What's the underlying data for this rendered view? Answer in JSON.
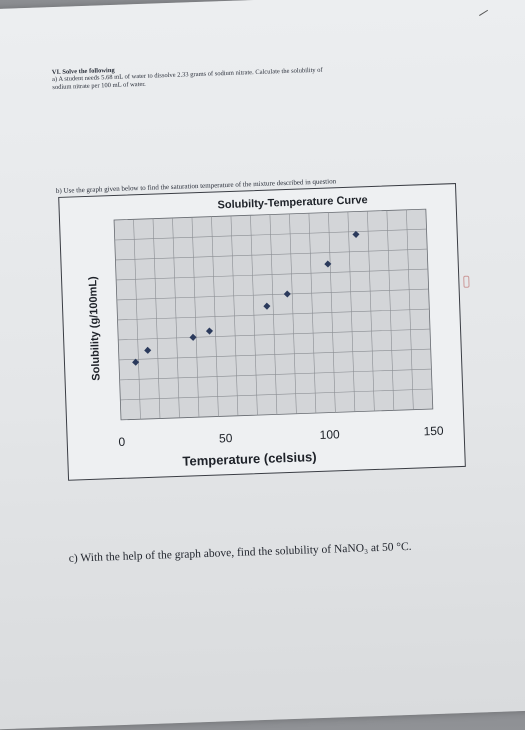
{
  "worksheet": {
    "section_title": "VI. Solve the following",
    "question_a_line1": "a) A student needs 5.68 mL of water to dissolve 2.33 grams of sodium nitrate. Calculate the solubility of",
    "question_a_line2": "sodium nitrate per 100 mL of water.",
    "question_b": "b) Use the graph given below to find the saturation temperature of the mixture described in question",
    "question_c": "c) With the help of the graph above, find the solubility of NaNO₃ at 50 °C."
  },
  "chart_data": {
    "type": "scatter",
    "title": "Solubilty-Temperature Curve",
    "xlabel": "Temperature (celsius)",
    "ylabel": "Solubility (g/100mL)",
    "xlim": [
      0,
      150
    ],
    "xticks": [
      "0",
      "50",
      "100",
      "150"
    ],
    "grid": true,
    "marker_color": "#2b3a5c",
    "x": [
      8,
      14,
      36,
      44,
      72,
      82,
      102,
      116
    ],
    "y": [
      60,
      64,
      68,
      70,
      78,
      82,
      92,
      102
    ],
    "ylim": [
      40,
      110
    ]
  }
}
